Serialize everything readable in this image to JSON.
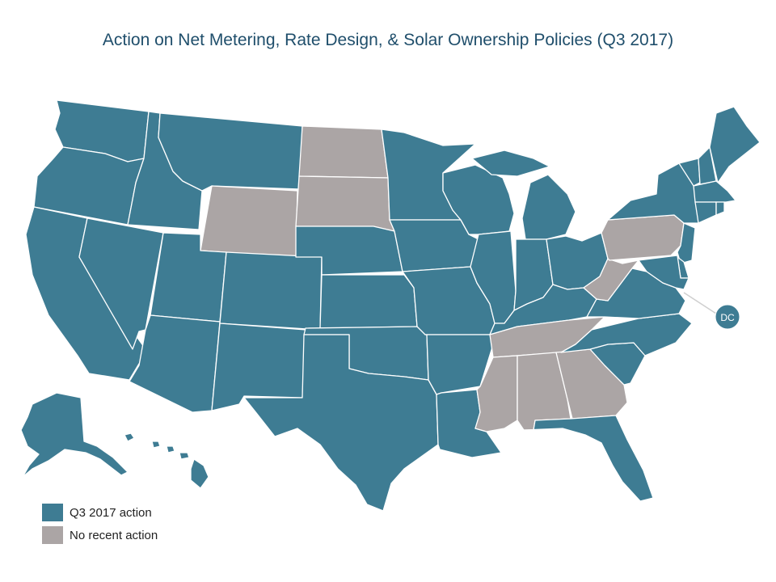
{
  "title": "Action on Net Metering, Rate Design, & Solar Ownership Policies (Q3 2017)",
  "colors": {
    "action": "#3e7c93",
    "no_action": "#aba5a5",
    "border": "#ffffff"
  },
  "legend": [
    {
      "key": "action",
      "label": "Q3 2017 action"
    },
    {
      "key": "no_action",
      "label": "No recent action"
    }
  ],
  "dc_label": "DC",
  "map_data": {
    "states_q3_2017_action": [
      "WA",
      "OR",
      "CA",
      "NV",
      "ID",
      "MT",
      "UT",
      "AZ",
      "CO",
      "NM",
      "TX",
      "OK",
      "KS",
      "NE",
      "MN",
      "IA",
      "MO",
      "AR",
      "LA",
      "WI",
      "IL",
      "MI",
      "IN",
      "OH",
      "KY",
      "VA",
      "NC",
      "SC",
      "FL",
      "NY",
      "VT",
      "NH",
      "ME",
      "MA",
      "CT",
      "RI",
      "NJ",
      "DE",
      "MD",
      "DC",
      "AK",
      "HI"
    ],
    "states_no_recent_action": [
      "WY",
      "ND",
      "SD",
      "PA",
      "WV",
      "TN",
      "MS",
      "AL",
      "GA"
    ]
  }
}
